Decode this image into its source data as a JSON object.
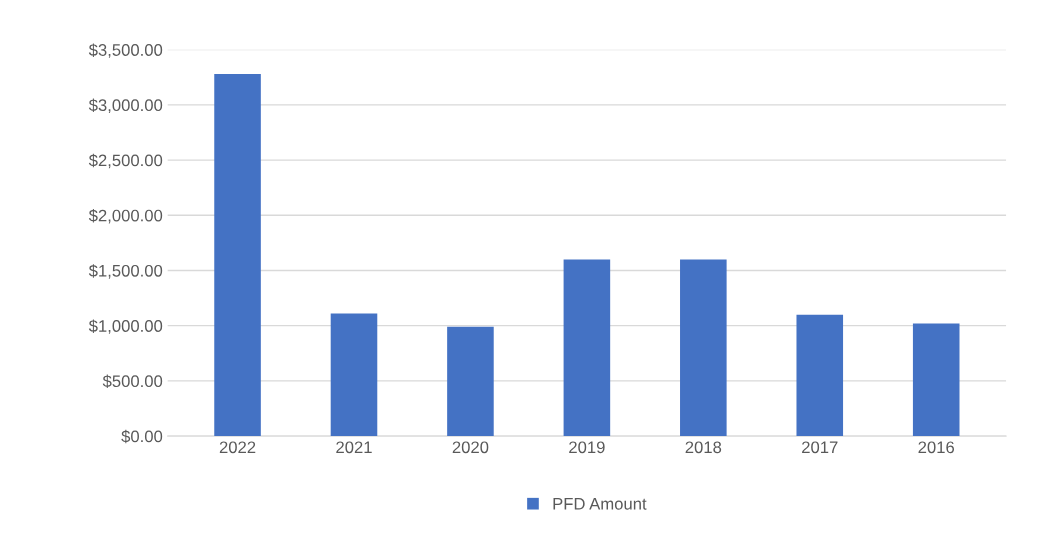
{
  "chart_data": {
    "type": "bar",
    "categories": [
      "2022",
      "2021",
      "2020",
      "2019",
      "2018",
      "2017",
      "2016"
    ],
    "series": [
      {
        "name": "PFD Amount",
        "color": "#4472c4",
        "values": [
          3280,
          1110,
          990,
          1600,
          1600,
          1100,
          1020
        ]
      }
    ],
    "ylim": [
      0,
      3500
    ],
    "yticks": [
      {
        "value": 0,
        "label": "$0.00"
      },
      {
        "value": 500,
        "label": "$500.00"
      },
      {
        "value": 1000,
        "label": "$1,000.00"
      },
      {
        "value": 1500,
        "label": "$1,500.00"
      },
      {
        "value": 2000,
        "label": "$2,000.00"
      },
      {
        "value": 2500,
        "label": "$2,500.00"
      },
      {
        "value": 3000,
        "label": "$3,000.00"
      },
      {
        "value": 3500,
        "label": "$3,500.00"
      }
    ],
    "grid": "y",
    "legend": "bottom"
  }
}
